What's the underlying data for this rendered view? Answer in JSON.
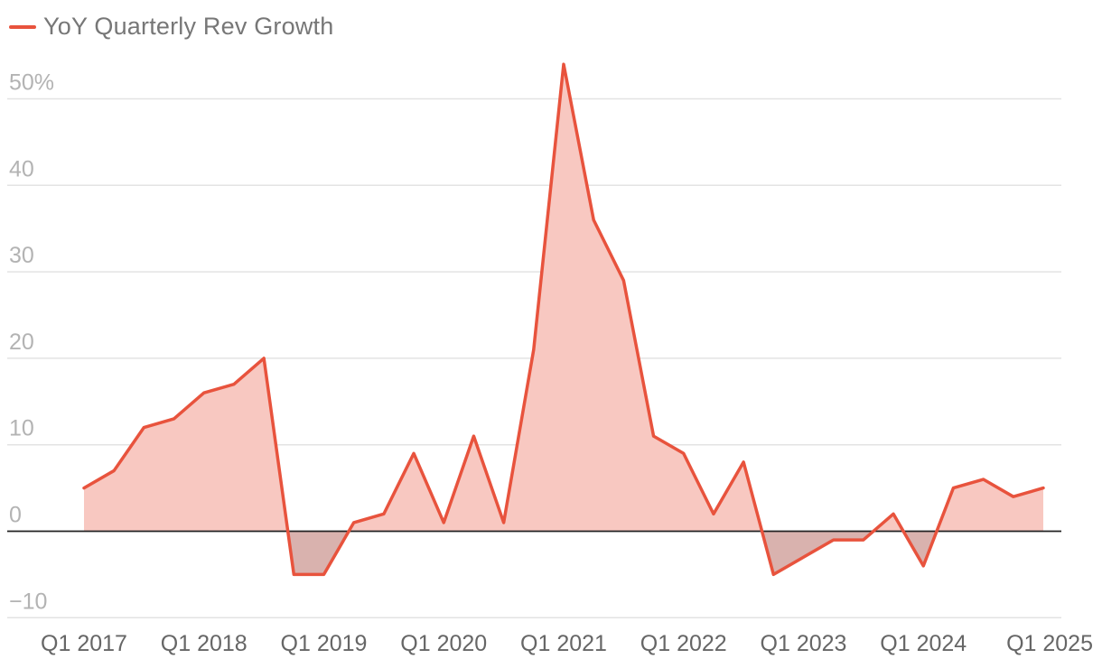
{
  "legend": {
    "label": "YoY Quarterly Rev Growth"
  },
  "colors": {
    "line": "#e8533d",
    "fill_positive": "#f8c8c1",
    "fill_negative": "#d9b2ae",
    "grid": "#e3e3e3",
    "zero_line": "#222222"
  },
  "chart_data": {
    "type": "area",
    "series": [
      {
        "name": "YoY Quarterly Rev Growth",
        "x": [
          "Q1 2017",
          "Q2 2017",
          "Q3 2017",
          "Q4 2017",
          "Q1 2018",
          "Q2 2018",
          "Q3 2018",
          "Q4 2018",
          "Q1 2019",
          "Q2 2019",
          "Q3 2019",
          "Q4 2019",
          "Q1 2020",
          "Q2 2020",
          "Q3 2020",
          "Q4 2020",
          "Q1 2021",
          "Q2 2021",
          "Q3 2021",
          "Q4 2021",
          "Q1 2022",
          "Q2 2022",
          "Q3 2022",
          "Q4 2022",
          "Q1 2023",
          "Q2 2023",
          "Q3 2023",
          "Q4 2023",
          "Q1 2024",
          "Q2 2024",
          "Q3 2024",
          "Q4 2024",
          "Q1 2025"
        ],
        "values": [
          5,
          7,
          12,
          13,
          16,
          17,
          20,
          -5,
          -5,
          1,
          2,
          9,
          1,
          11,
          1,
          21,
          54,
          36,
          29,
          11,
          9,
          2,
          8,
          -5,
          -3,
          -1,
          -1,
          2,
          -4,
          5,
          6,
          4,
          5
        ]
      }
    ],
    "xticks": [
      "Q1 2017",
      "Q1 2018",
      "Q1 2019",
      "Q1 2020",
      "Q1 2021",
      "Q1 2022",
      "Q1 2023",
      "Q1 2024",
      "Q1 2025"
    ],
    "yticks": [
      -10,
      0,
      10,
      20,
      30,
      40,
      50
    ],
    "ytick_labels": [
      "−10",
      "0",
      "10",
      "20",
      "30",
      "40",
      "50%"
    ],
    "ylim": [
      -10,
      55
    ],
    "grid": true,
    "legend_position": "top-left"
  }
}
